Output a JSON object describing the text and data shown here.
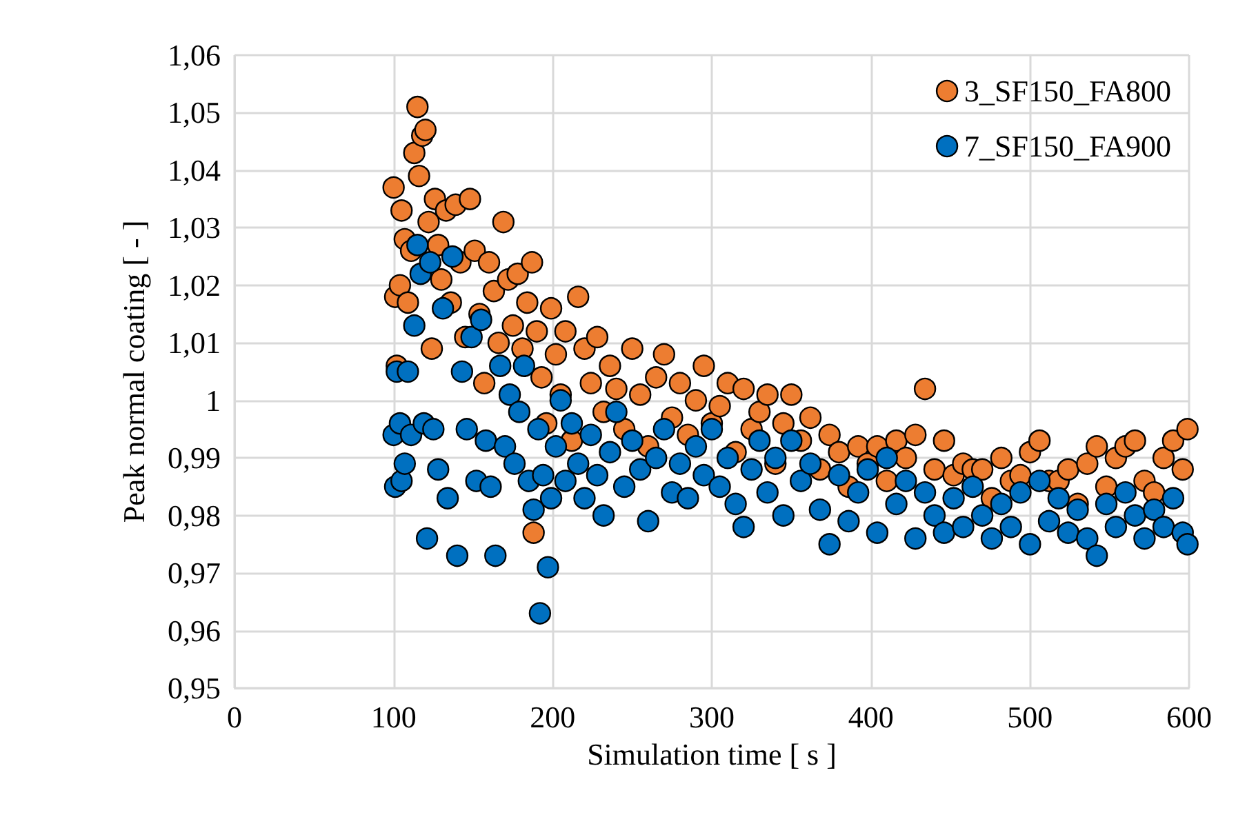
{
  "chart_data": {
    "type": "scatter",
    "xlabel": "Simulation time [ s ]",
    "ylabel": "Peak normal coating [ - ]",
    "xlim": [
      0,
      600
    ],
    "xticks": [
      0,
      100,
      200,
      300,
      400,
      500,
      600
    ],
    "ylim": [
      0.95,
      1.06
    ],
    "yticks": [
      {
        "value": 0.95,
        "label": "0,95"
      },
      {
        "value": 0.96,
        "label": "0,96"
      },
      {
        "value": 0.97,
        "label": "0,97"
      },
      {
        "value": 0.98,
        "label": "0,98"
      },
      {
        "value": 0.99,
        "label": "0,99"
      },
      {
        "value": 1,
        "label": "1"
      },
      {
        "value": 1.01,
        "label": "1,01"
      },
      {
        "value": 1.02,
        "label": "1,02"
      },
      {
        "value": 1.03,
        "label": "1,03"
      },
      {
        "value": 1.04,
        "label": "1,04"
      },
      {
        "value": 1.05,
        "label": "1,05"
      },
      {
        "value": 1.06,
        "label": "1,06"
      }
    ],
    "grid": true,
    "legend": "top right",
    "marker": "circle",
    "series": [
      {
        "name": "3_SF150_FA800",
        "color": "#ed7d31",
        "x": [
          100,
          101,
          102,
          104,
          105,
          107,
          109,
          111,
          113,
          115,
          116,
          118,
          120,
          122,
          124,
          126,
          128,
          130,
          133,
          136,
          139,
          142,
          145,
          148,
          151,
          154,
          157,
          160,
          163,
          166,
          169,
          172,
          175,
          178,
          181,
          184,
          187,
          188,
          190,
          193,
          196,
          199,
          202,
          205,
          208,
          212,
          216,
          220,
          224,
          228,
          232,
          236,
          240,
          245,
          250,
          255,
          260,
          265,
          270,
          275,
          280,
          285,
          290,
          295,
          300,
          305,
          310,
          315,
          320,
          325,
          330,
          335,
          340,
          345,
          350,
          356,
          362,
          368,
          374,
          380,
          386,
          392,
          398,
          404,
          410,
          416,
          422,
          428,
          434,
          440,
          446,
          452,
          458,
          464,
          470,
          476,
          482,
          488,
          494,
          500,
          506,
          512,
          518,
          524,
          530,
          536,
          542,
          548,
          554,
          560,
          566,
          572,
          578,
          584,
          590,
          596,
          599
        ],
        "values": [
          1.037,
          1.018,
          1.006,
          1.02,
          1.033,
          1.028,
          1.017,
          1.026,
          1.043,
          1.051,
          1.039,
          1.046,
          1.047,
          1.031,
          1.009,
          1.035,
          1.027,
          1.021,
          1.033,
          1.017,
          1.034,
          1.024,
          1.011,
          1.035,
          1.026,
          1.015,
          1.003,
          1.024,
          1.019,
          1.01,
          1.031,
          1.021,
          1.013,
          1.022,
          1.009,
          1.017,
          1.024,
          0.977,
          1.012,
          1.004,
          0.996,
          1.016,
          1.008,
          1.001,
          1.012,
          0.993,
          1.018,
          1.009,
          1.003,
          1.011,
          0.998,
          1.006,
          1.002,
          0.995,
          1.009,
          1.001,
          0.992,
          1.004,
          1.008,
          0.997,
          1.003,
          0.994,
          1.0,
          1.006,
          0.996,
          0.999,
          1.003,
          0.991,
          1.002,
          0.995,
          0.998,
          1.001,
          0.989,
          0.996,
          1.001,
          0.993,
          0.997,
          0.988,
          0.994,
          0.991,
          0.985,
          0.992,
          0.989,
          0.992,
          0.986,
          0.993,
          0.99,
          0.994,
          1.002,
          0.988,
          0.993,
          0.987,
          0.989,
          0.988,
          0.988,
          0.983,
          0.99,
          0.986,
          0.987,
          0.991,
          0.993,
          0.986,
          0.986,
          0.988,
          0.982,
          0.989,
          0.992,
          0.985,
          0.99,
          0.992,
          0.993,
          0.986,
          0.984,
          0.99,
          0.993,
          0.988,
          0.995
        ]
      },
      {
        "name": "7_SF150_FA900",
        "color": "#0070c0",
        "x": [
          100,
          101,
          102,
          104,
          105,
          107,
          109,
          111,
          113,
          115,
          117,
          119,
          121,
          123,
          125,
          128,
          131,
          134,
          137,
          140,
          143,
          146,
          149,
          152,
          155,
          158,
          161,
          164,
          167,
          170,
          173,
          176,
          179,
          182,
          185,
          188,
          191,
          192,
          194,
          197,
          199,
          202,
          205,
          208,
          212,
          216,
          220,
          224,
          228,
          232,
          236,
          240,
          245,
          250,
          255,
          260,
          265,
          270,
          275,
          280,
          285,
          290,
          295,
          300,
          305,
          310,
          315,
          320,
          325,
          330,
          335,
          340,
          345,
          350,
          356,
          362,
          368,
          374,
          380,
          386,
          392,
          398,
          404,
          410,
          416,
          422,
          428,
          434,
          440,
          446,
          452,
          458,
          464,
          470,
          476,
          482,
          488,
          494,
          500,
          506,
          512,
          518,
          524,
          530,
          536,
          542,
          548,
          554,
          560,
          566,
          572,
          578,
          584,
          590,
          596,
          599
        ],
        "values": [
          0.994,
          0.985,
          1.005,
          0.996,
          0.986,
          0.989,
          1.005,
          0.994,
          1.013,
          1.027,
          1.022,
          0.996,
          0.976,
          1.024,
          0.995,
          0.988,
          1.016,
          0.983,
          1.025,
          0.973,
          1.005,
          0.995,
          1.011,
          0.986,
          1.014,
          0.993,
          0.985,
          0.973,
          1.006,
          0.992,
          1.001,
          0.989,
          0.998,
          1.006,
          0.986,
          0.981,
          0.995,
          0.963,
          0.987,
          0.971,
          0.983,
          0.992,
          1.0,
          0.986,
          0.996,
          0.989,
          0.983,
          0.994,
          0.987,
          0.98,
          0.991,
          0.998,
          0.985,
          0.993,
          0.988,
          0.979,
          0.99,
          0.995,
          0.984,
          0.989,
          0.983,
          0.992,
          0.987,
          0.995,
          0.985,
          0.99,
          0.982,
          0.978,
          0.988,
          0.993,
          0.984,
          0.99,
          0.98,
          0.993,
          0.986,
          0.989,
          0.981,
          0.975,
          0.987,
          0.979,
          0.984,
          0.988,
          0.977,
          0.99,
          0.982,
          0.986,
          0.976,
          0.984,
          0.98,
          0.977,
          0.983,
          0.978,
          0.985,
          0.98,
          0.976,
          0.982,
          0.978,
          0.984,
          0.975,
          0.986,
          0.979,
          0.983,
          0.977,
          0.981,
          0.976,
          0.973,
          0.982,
          0.978,
          0.984,
          0.98,
          0.976,
          0.981,
          0.978,
          0.983,
          0.977,
          0.975
        ]
      }
    ]
  }
}
